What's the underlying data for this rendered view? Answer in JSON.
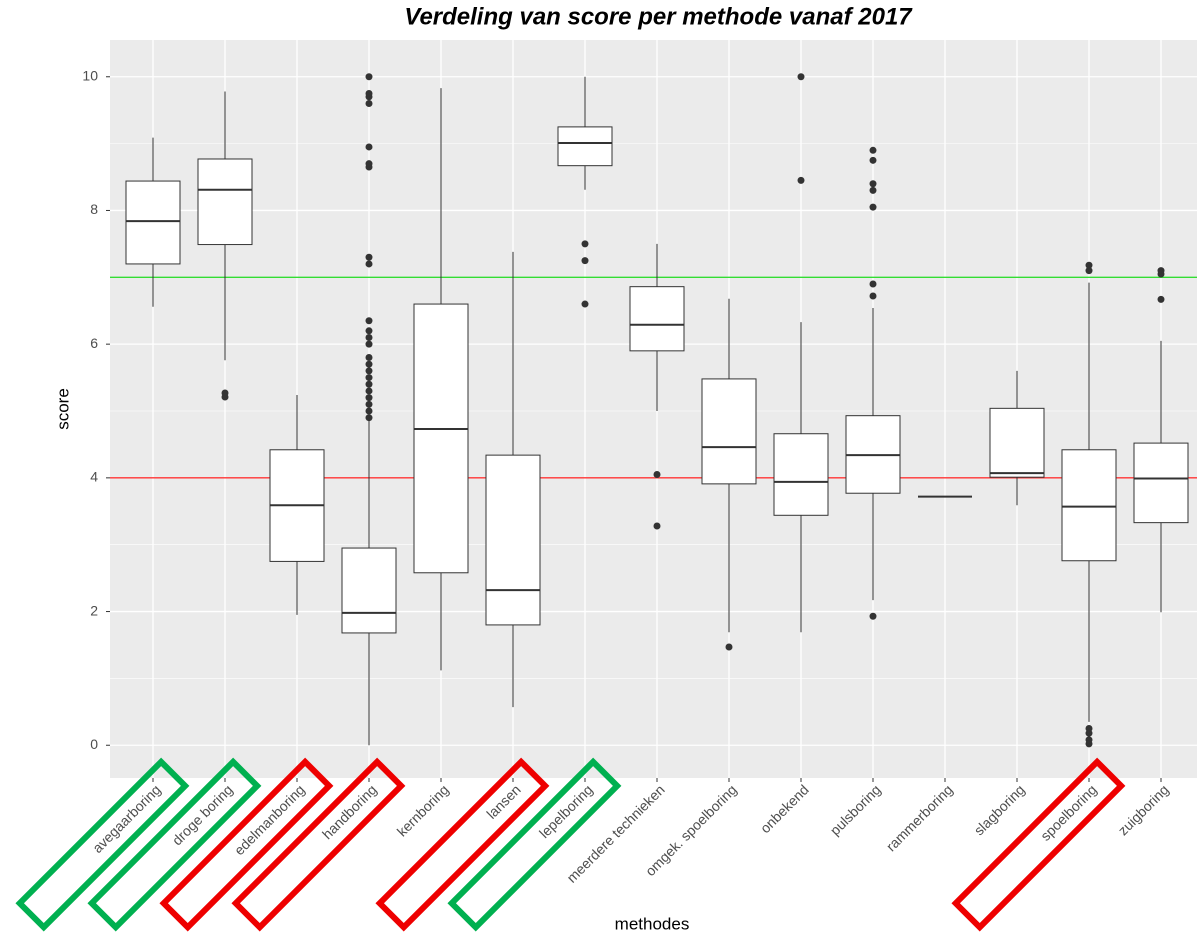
{
  "chart_data": {
    "type": "boxplot",
    "title": "Verdeling van score per methode vanaf 2017",
    "x_label": "methodes",
    "y_label": "score",
    "categories": [
      "avegaarboring",
      "droge boring",
      "edelmanboring",
      "handboring",
      "kernboring",
      "lansen",
      "lepelboring",
      "meerdere technieken",
      "omgek. spoelboring",
      "onbekend",
      "pulsboring",
      "rammerboring",
      "slagboring",
      "spoelboring",
      "zuigboring"
    ],
    "boxes": [
      {
        "min": 6.56,
        "q1": 7.2,
        "median": 7.84,
        "q3": 8.44,
        "max": 9.09,
        "outliers": []
      },
      {
        "min": 5.76,
        "q1": 7.49,
        "median": 8.31,
        "q3": 8.77,
        "max": 9.78,
        "outliers": [
          5.27,
          5.21
        ]
      },
      {
        "min": 1.95,
        "q1": 2.75,
        "median": 3.59,
        "q3": 4.42,
        "max": 5.24,
        "outliers": []
      },
      {
        "min": 0,
        "q1": 1.68,
        "median": 1.98,
        "q3": 2.95,
        "max": 4.85,
        "outliers": [
          4.9,
          5.0,
          5.1,
          5.2,
          5.3,
          5.4,
          5.5,
          5.6,
          5.7,
          5.8,
          6.0,
          6.1,
          6.2,
          6.35,
          7.2,
          7.3,
          8.65,
          8.7,
          8.95,
          9.6,
          9.7,
          9.75,
          10
        ]
      },
      {
        "min": 1.12,
        "q1": 2.58,
        "median": 4.73,
        "q3": 6.6,
        "max": 9.83,
        "outliers": []
      },
      {
        "min": 0.57,
        "q1": 1.8,
        "median": 2.32,
        "q3": 4.34,
        "max": 7.38,
        "outliers": []
      },
      {
        "min": 8.31,
        "q1": 8.67,
        "median": 9.01,
        "q3": 9.25,
        "max": 10,
        "outliers": [
          7.5,
          7.25,
          6.6
        ]
      },
      {
        "min": 5.0,
        "q1": 5.9,
        "median": 6.29,
        "q3": 6.86,
        "max": 7.5,
        "outliers": [
          4.05,
          3.28
        ]
      },
      {
        "min": 1.69,
        "q1": 3.91,
        "median": 4.46,
        "q3": 5.48,
        "max": 6.68,
        "outliers": [
          1.47
        ]
      },
      {
        "min": 1.69,
        "q1": 3.44,
        "median": 3.94,
        "q3": 4.66,
        "max": 6.33,
        "outliers": [
          10,
          8.45
        ]
      },
      {
        "min": 2.17,
        "q1": 3.77,
        "median": 4.34,
        "q3": 4.93,
        "max": 6.54,
        "outliers": [
          8.9,
          8.75,
          8.4,
          8.3,
          8.05,
          6.9,
          6.72,
          1.93
        ]
      },
      {
        "min": 3.72,
        "q1": 3.72,
        "median": 3.72,
        "q3": 3.72,
        "max": 3.72,
        "outliers": []
      },
      {
        "min": 3.59,
        "q1": 4.01,
        "median": 4.07,
        "q3": 5.04,
        "max": 5.6,
        "outliers": []
      },
      {
        "min": 0.35,
        "q1": 2.76,
        "median": 3.57,
        "q3": 4.42,
        "max": 6.92,
        "outliers": [
          7.18,
          7.1,
          0.25,
          0.18,
          0.08,
          0.02
        ]
      },
      {
        "min": 1.99,
        "q1": 3.33,
        "median": 3.99,
        "q3": 4.52,
        "max": 6.05,
        "outliers": [
          7.1,
          7.05,
          6.67
        ]
      }
    ],
    "reference_lines": [
      {
        "value": 7,
        "color": "#33dd33"
      },
      {
        "value": 4,
        "color": "#ff3333"
      }
    ],
    "highlights": [
      {
        "color": "#00b050",
        "categories": [
          0,
          1,
          6
        ]
      },
      {
        "color": "#ee0000",
        "categories": [
          2,
          3,
          5,
          13
        ]
      }
    ],
    "ylim": [
      -0.49,
      10.55
    ],
    "yticks": [
      0,
      2,
      4,
      6,
      8,
      10
    ],
    "minor_yticks": [
      1,
      3,
      5,
      7,
      9
    ],
    "grid": true
  }
}
